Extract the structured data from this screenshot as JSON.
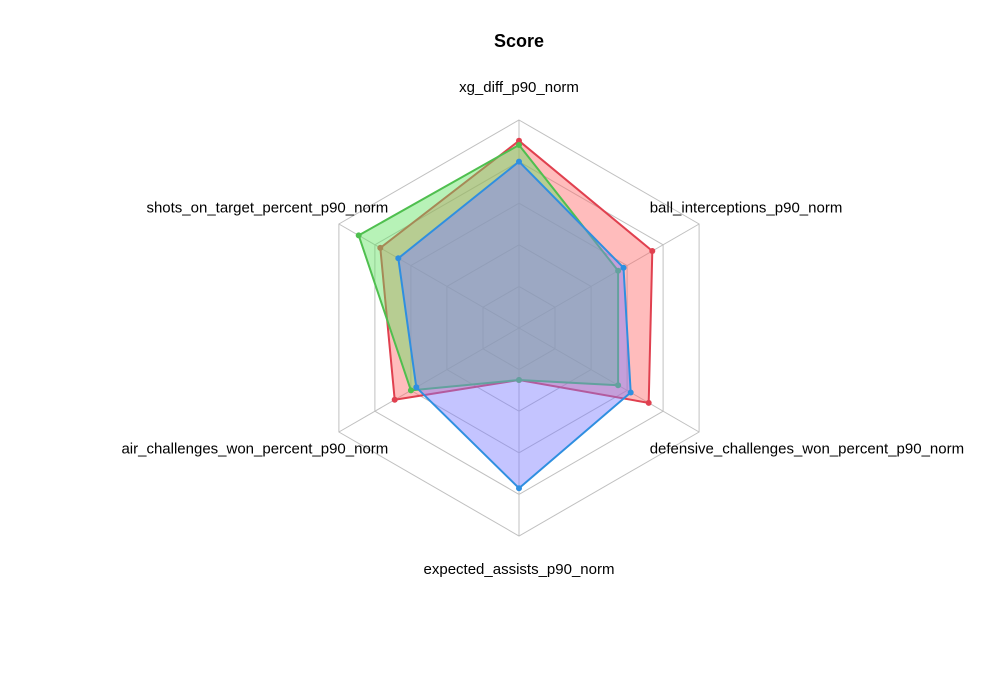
{
  "chart_data": {
    "type": "radar",
    "title": "Score",
    "axes": [
      "xg_diff_p90_norm",
      "ball_interceptions_p90_norm",
      "defensive_challenges_won_percent_p90_norm",
      "expected_assists_p90_norm",
      "air_challenges_won_percent_p90_norm",
      "shots_on_target_percent_p90_norm"
    ],
    "rmin": 0,
    "rmax": 1,
    "grid_levels": 5,
    "legend": "none",
    "series": [
      {
        "color": "#e0404f",
        "fill_color": "#ff6b6b",
        "values": [
          0.9,
          0.74,
          0.72,
          0.25,
          0.69,
          0.77
        ]
      },
      {
        "color": "#4fbf4f",
        "fill_color": "#5fe35f",
        "values": [
          0.88,
          0.55,
          0.55,
          0.25,
          0.6,
          0.89
        ]
      },
      {
        "color": "#2f8fe0",
        "fill_color": "#7d7dff",
        "values": [
          0.8,
          0.58,
          0.62,
          0.77,
          0.57,
          0.67
        ]
      }
    ]
  }
}
